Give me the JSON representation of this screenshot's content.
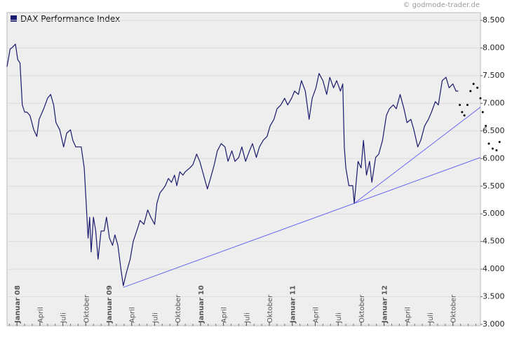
{
  "chart_data": {
    "type": "line",
    "title": "DAX Performance Index",
    "watermark": "© godmode-trader.de",
    "xlim": [
      -1.3,
      60.6
    ],
    "ylim": [
      2975,
      8640
    ],
    "grid": true,
    "xticks": [
      {
        "value": 0,
        "label": "Januar 08"
      },
      {
        "value": 3,
        "label": "April"
      },
      {
        "value": 6,
        "label": "Juli"
      },
      {
        "value": 9,
        "label": "Oktober"
      },
      {
        "value": 12,
        "label": "Januar 09"
      },
      {
        "value": 15,
        "label": "April"
      },
      {
        "value": 18,
        "label": "Juli"
      },
      {
        "value": 21,
        "label": "Oktober"
      },
      {
        "value": 24,
        "label": "Januar 10"
      },
      {
        "value": 27,
        "label": "April"
      },
      {
        "value": 30,
        "label": "Juli"
      },
      {
        "value": 33,
        "label": "Oktober"
      },
      {
        "value": 36,
        "label": "Januar 11"
      },
      {
        "value": 39,
        "label": "April"
      },
      {
        "value": 42,
        "label": "Juli"
      },
      {
        "value": 45,
        "label": "Oktober"
      },
      {
        "value": 48,
        "label": "Januar 12"
      },
      {
        "value": 51,
        "label": "April"
      },
      {
        "value": 54,
        "label": "Juli"
      },
      {
        "value": 57,
        "label": "Oktober"
      }
    ],
    "yticks": [
      {
        "value": 3000,
        "label": "3.000"
      },
      {
        "value": 3500,
        "label": "3.500"
      },
      {
        "value": 4000,
        "label": "4.000"
      },
      {
        "value": 4500,
        "label": "4.500"
      },
      {
        "value": 5000,
        "label": "5.000"
      },
      {
        "value": 5500,
        "label": "5.500"
      },
      {
        "value": 6000,
        "label": "6.000"
      },
      {
        "value": 6500,
        "label": "6.500"
      },
      {
        "value": 7000,
        "label": "7.000"
      },
      {
        "value": 7500,
        "label": "7.500"
      },
      {
        "value": 8000,
        "label": "8.000"
      },
      {
        "value": 8500,
        "label": "8.500"
      }
    ],
    "series": [
      {
        "name": "DAX Performance Index",
        "color": "#1a1a6e",
        "x": [
          -1.3,
          -0.9,
          -0.6,
          -0.2,
          0.1,
          0.4,
          0.7,
          1.0,
          1.3,
          1.7,
          2.2,
          2.6,
          2.9,
          3.5,
          4.0,
          4.4,
          4.8,
          5.1,
          5.6,
          6.1,
          6.5,
          7.0,
          7.3,
          7.7,
          8.1,
          8.4,
          8.8,
          9.1,
          9.3,
          9.5,
          9.7,
          10.0,
          10.3,
          10.6,
          11.0,
          11.4,
          11.7,
          12.1,
          12.5,
          12.8,
          13.2,
          13.6,
          13.9,
          14.3,
          14.8,
          15.2,
          15.8,
          16.1,
          16.6,
          17.1,
          17.5,
          18.0,
          18.3,
          18.7,
          19.1,
          19.4,
          19.8,
          20.2,
          20.6,
          20.9,
          21.3,
          21.7,
          22.0,
          22.6,
          23.0,
          23.5,
          23.9,
          24.4,
          24.9,
          25.3,
          25.8,
          26.2,
          26.7,
          27.2,
          27.6,
          28.1,
          28.5,
          29.0,
          29.4,
          29.9,
          30.4,
          30.8,
          31.3,
          31.7,
          32.2,
          32.7,
          33.1,
          33.6,
          34.0,
          34.5,
          35.0,
          35.4,
          35.9,
          36.3,
          36.8,
          37.2,
          37.7,
          38.2,
          38.6,
          39.1,
          39.5,
          40.0,
          40.5,
          40.9,
          41.4,
          41.8,
          42.3,
          42.6,
          42.8,
          43.0,
          43.4,
          43.9,
          44.1,
          44.6,
          45.0,
          45.3,
          45.7,
          46.1,
          46.4,
          46.9,
          47.3,
          47.8,
          48.3,
          48.7,
          49.2,
          49.6,
          50.1,
          50.6,
          51.0,
          51.5,
          51.9,
          52.4,
          52.8,
          53.3,
          53.8,
          54.2,
          54.7,
          55.1,
          55.6,
          56.1,
          56.5,
          57.0,
          57.4,
          57.7
        ],
        "values": [
          7660,
          7980,
          8010,
          8070,
          7790,
          7730,
          6970,
          6840,
          6840,
          6780,
          6520,
          6400,
          6710,
          6900,
          7090,
          7160,
          6970,
          6650,
          6520,
          6210,
          6460,
          6520,
          6330,
          6210,
          6210,
          6210,
          5830,
          5070,
          4560,
          4940,
          4310,
          4940,
          4690,
          4180,
          4690,
          4690,
          4940,
          4560,
          4430,
          4620,
          4430,
          3990,
          3700,
          3930,
          4180,
          4500,
          4750,
          4880,
          4810,
          5070,
          4940,
          4810,
          5190,
          5380,
          5450,
          5510,
          5640,
          5570,
          5700,
          5510,
          5760,
          5700,
          5760,
          5830,
          5890,
          6080,
          5950,
          5700,
          5450,
          5640,
          5890,
          6140,
          6270,
          6210,
          5950,
          6140,
          5950,
          6020,
          6210,
          5950,
          6140,
          6270,
          6020,
          6210,
          6330,
          6400,
          6590,
          6710,
          6900,
          6970,
          7090,
          6970,
          7090,
          7220,
          7160,
          7410,
          7220,
          6710,
          7090,
          7280,
          7540,
          7410,
          7160,
          7470,
          7280,
          7410,
          7220,
          7350,
          6210,
          5830,
          5510,
          5510,
          5190,
          5950,
          5830,
          6330,
          5700,
          5950,
          5570,
          6020,
          6080,
          6330,
          6780,
          6900,
          6970,
          6900,
          7160,
          6900,
          6650,
          6710,
          6520,
          6210,
          6330,
          6590,
          6710,
          6840,
          7030,
          6970,
          7410,
          7470,
          7280,
          7350,
          7220,
          7220
        ]
      },
      {
        "color": "#000000",
        "dotted": true,
        "x": [
          57.9,
          58.2,
          58.5,
          58.9,
          59.3,
          59.7,
          60.2,
          60.6,
          60.9,
          61.3,
          61.7,
          62.2,
          62.7,
          63.1
        ],
        "values": [
          6970,
          6840,
          6780,
          6970,
          7220,
          7350,
          7280,
          7090,
          6840,
          6590,
          6270,
          6180,
          6150,
          6300
        ]
      }
    ],
    "trendlines": {
      "color": "#6a6af0",
      "lines": [
        {
          "x": [
            13.9,
            44.1
          ],
          "values": [
            3670,
            5190
          ]
        },
        {
          "x": [
            44.1,
            60.6
          ],
          "values": [
            5190,
            6020
          ]
        },
        {
          "x": [
            44.1,
            60.6
          ],
          "values": [
            5190,
            6930
          ]
        }
      ]
    }
  }
}
